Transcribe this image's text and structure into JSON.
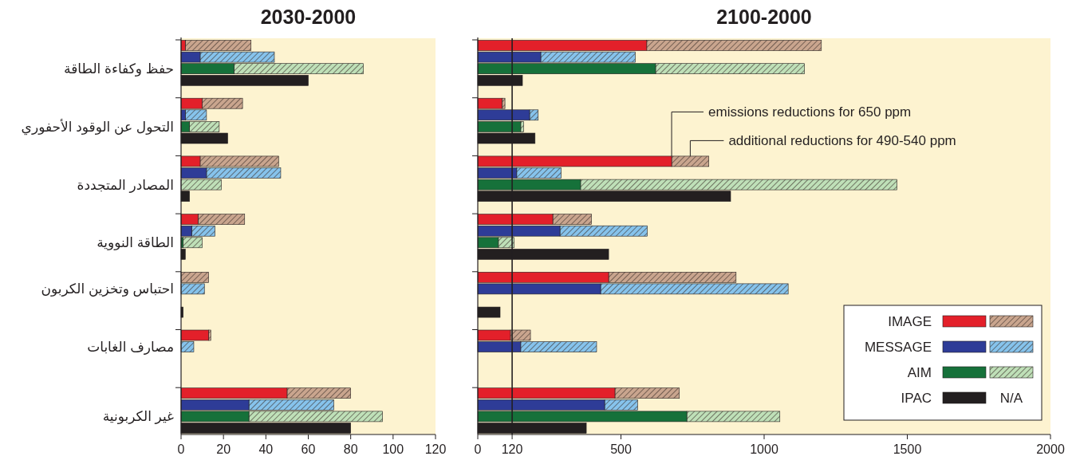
{
  "chart_data": [
    {
      "type": "bar",
      "orientation": "horizontal",
      "stacked": true,
      "title": "2030-2000",
      "categories": [
        null,
        null,
        "حفظ وكفاءة الطاقة",
        null,
        null,
        null,
        "التحول عن الوقود الأحفوري",
        null,
        null,
        null,
        "المصادر المتجددة",
        null,
        null,
        null,
        "الطاقة النووية",
        null,
        null,
        "احتباس وتخزين الكربون",
        null,
        null,
        null,
        "مصارف الغابات",
        null,
        null,
        null,
        null,
        "غير الكربونية",
        null
      ],
      "xlim": [
        0,
        120
      ],
      "xticks": [
        0,
        20,
        40,
        60,
        80,
        100,
        120
      ],
      "series": [
        {
          "color": "#e3202a",
          "values": [
            2,
            null,
            null,
            null,
            10,
            null,
            null,
            null,
            9,
            null,
            null,
            null,
            8,
            null,
            null,
            null,
            null,
            null,
            null,
            null,
            13,
            null,
            null,
            null,
            50,
            null,
            null,
            null
          ]
        },
        {
          "color": "#c9a58e",
          "values": [
            31,
            null,
            null,
            null,
            19,
            null,
            null,
            null,
            37,
            null,
            null,
            null,
            22,
            null,
            null,
            null,
            13,
            null,
            null,
            null,
            1,
            null,
            null,
            null,
            30,
            null,
            null,
            null
          ]
        },
        {
          "color": "#2e3c97",
          "values": [
            null,
            9,
            null,
            null,
            null,
            2,
            null,
            null,
            null,
            12,
            null,
            null,
            null,
            5,
            null,
            null,
            null,
            null,
            null,
            null,
            null,
            null,
            null,
            null,
            null,
            32,
            null,
            null
          ]
        },
        {
          "color": "#86c3ec",
          "values": [
            null,
            35,
            null,
            null,
            null,
            10,
            null,
            null,
            null,
            35,
            null,
            null,
            null,
            11,
            null,
            null,
            null,
            11,
            null,
            null,
            null,
            6,
            null,
            null,
            null,
            40,
            null,
            null
          ]
        },
        {
          "color": "#16713a",
          "values": [
            null,
            null,
            25,
            null,
            null,
            null,
            4,
            null,
            null,
            null,
            null,
            null,
            null,
            null,
            1,
            null,
            null,
            null,
            null,
            null,
            null,
            null,
            null,
            null,
            null,
            null,
            32,
            null
          ]
        },
        {
          "color": "#bfe0b8",
          "values": [
            null,
            null,
            61,
            null,
            null,
            null,
            14,
            null,
            null,
            null,
            19,
            null,
            null,
            null,
            9,
            null,
            null,
            null,
            null,
            null,
            null,
            null,
            null,
            null,
            null,
            null,
            63,
            null
          ]
        },
        {
          "color": "#231f20",
          "values": [
            null,
            null,
            null,
            60,
            null,
            null,
            null,
            22,
            null,
            null,
            null,
            4,
            null,
            null,
            null,
            2,
            null,
            null,
            null,
            1,
            null,
            null,
            null,
            null,
            null,
            null,
            null,
            80
          ]
        }
      ]
    },
    {
      "type": "bar",
      "orientation": "horizontal",
      "stacked": true,
      "title": "2100-2000",
      "tick_labels": "x",
      "categories": [
        null,
        null,
        null,
        null,
        null,
        null,
        null,
        null,
        null,
        null,
        null,
        null,
        null,
        null,
        null,
        null,
        null,
        null,
        null,
        null,
        null,
        null,
        null,
        null,
        null,
        null,
        null,
        null
      ],
      "xlim": [
        0,
        2000
      ],
      "xticks": [
        0,
        120,
        500,
        1000,
        1500,
        2000
      ],
      "ref_lines": [
        {
          "axis": "x",
          "value": 120
        }
      ],
      "legend": "bottom right",
      "annotations": [
        "emissions reductions for 650 ppm",
        "additional reductions for 490-540 ppm",
        "N/A"
      ],
      "series": [
        {
          "name": "IMAGE",
          "color": "#e3202a",
          "values": [
            590,
            null,
            null,
            null,
            85,
            null,
            null,
            null,
            677,
            null,
            null,
            null,
            262,
            null,
            null,
            null,
            457,
            null,
            null,
            null,
            114,
            null,
            null,
            null,
            479,
            null,
            null,
            null
          ]
        },
        {
          "color": "#c9a58e",
          "values": [
            610,
            null,
            null,
            null,
            10,
            null,
            null,
            null,
            130,
            null,
            null,
            null,
            135,
            null,
            null,
            null,
            445,
            null,
            null,
            null,
            70,
            null,
            null,
            null,
            225,
            null,
            null,
            null
          ]
        },
        {
          "name": "MESSAGE",
          "color": "#2e3c97",
          "values": [
            null,
            220,
            null,
            null,
            null,
            181,
            null,
            null,
            null,
            136,
            null,
            null,
            null,
            287,
            null,
            null,
            null,
            429,
            null,
            null,
            null,
            150,
            null,
            null,
            null,
            443,
            null,
            null
          ]
        },
        {
          "color": "#86c3ec",
          "values": [
            null,
            330,
            null,
            null,
            null,
            30,
            null,
            null,
            null,
            155,
            null,
            null,
            null,
            305,
            null,
            null,
            null,
            655,
            null,
            null,
            null,
            265,
            null,
            null,
            null,
            115,
            null,
            null
          ]
        },
        {
          "name": "AIM",
          "color": "#16713a",
          "values": [
            null,
            null,
            621,
            null,
            null,
            null,
            150,
            null,
            null,
            null,
            359,
            null,
            null,
            null,
            72,
            null,
            null,
            null,
            null,
            null,
            null,
            null,
            null,
            null,
            null,
            null,
            730,
            null
          ]
        },
        {
          "color": "#bfe0b8",
          "values": [
            null,
            null,
            520,
            null,
            null,
            null,
            10,
            null,
            null,
            null,
            1105,
            null,
            null,
            null,
            55,
            null,
            null,
            null,
            null,
            null,
            null,
            null,
            null,
            null,
            null,
            null,
            325,
            null
          ]
        },
        {
          "name": "IPAC",
          "color": "#231f20",
          "values": [
            null,
            null,
            null,
            156,
            null,
            null,
            null,
            200,
            null,
            null,
            null,
            883,
            null,
            null,
            null,
            457,
            null,
            null,
            null,
            78,
            null,
            null,
            null,
            null,
            null,
            null,
            null,
            379
          ]
        }
      ]
    }
  ]
}
